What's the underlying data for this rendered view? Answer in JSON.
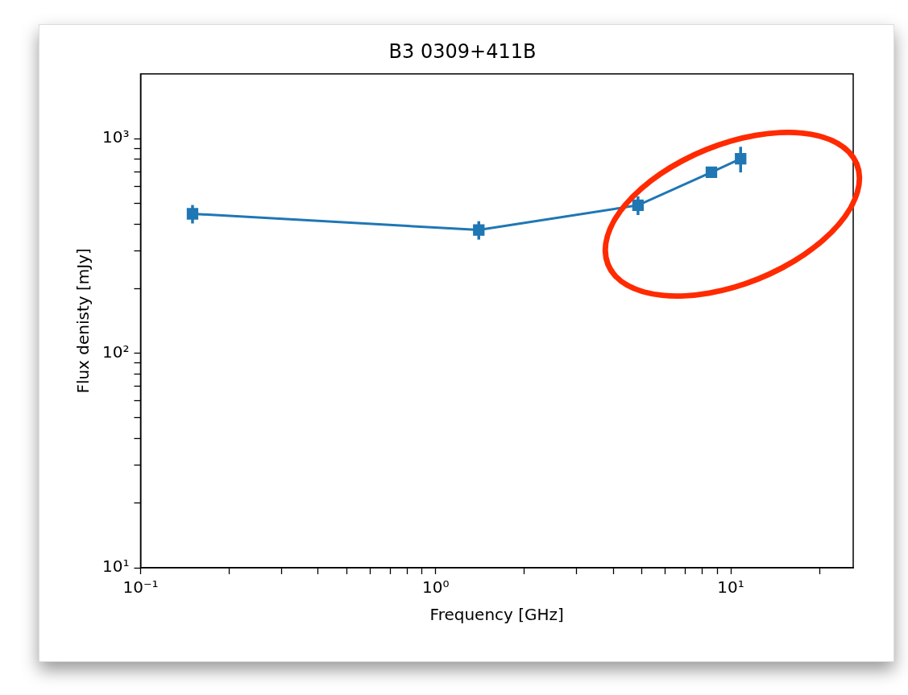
{
  "chart_data": {
    "type": "line",
    "title": "B3 0309+411B",
    "xlabel": "Frequency [GHz]",
    "ylabel": "Flux denisty [mJy]",
    "x": [
      0.15,
      1.4,
      4.85,
      8.6,
      10.8
    ],
    "series": [
      {
        "color": "#1f77b4",
        "values": [
          446,
          375,
          489,
          696,
          805
        ],
        "errors": [
          44,
          37,
          49,
          null,
          110
        ]
      }
    ],
    "log": "xy",
    "marker": "square",
    "line_style": "solid",
    "grid": false,
    "legend": false,
    "xlim": [
      0.1,
      26
    ],
    "xticks": [
      {
        "value": 0.1,
        "label": "10⁻¹"
      },
      {
        "value": 0.2,
        "label": null
      },
      {
        "value": 0.3,
        "label": null
      },
      {
        "value": 0.4,
        "label": null
      },
      {
        "value": 0.5,
        "label": null
      },
      {
        "value": 0.6,
        "label": null
      },
      {
        "value": 0.7,
        "label": null
      },
      {
        "value": 0.8,
        "label": null
      },
      {
        "value": 0.9,
        "label": null
      },
      {
        "value": 1,
        "label": "10⁰"
      },
      {
        "value": 2,
        "label": null
      },
      {
        "value": 3,
        "label": null
      },
      {
        "value": 4,
        "label": null
      },
      {
        "value": 5,
        "label": null
      },
      {
        "value": 6,
        "label": null
      },
      {
        "value": 7,
        "label": null
      },
      {
        "value": 8,
        "label": null
      },
      {
        "value": 9,
        "label": null
      },
      {
        "value": 10,
        "label": "10¹"
      },
      {
        "value": 20,
        "label": null
      }
    ],
    "ylim": [
      10,
      2000
    ],
    "yticks": [
      {
        "value": 10,
        "label": "10¹"
      },
      {
        "value": 20,
        "label": null
      },
      {
        "value": 30,
        "label": null
      },
      {
        "value": 40,
        "label": null
      },
      {
        "value": 50,
        "label": null
      },
      {
        "value": 60,
        "label": null
      },
      {
        "value": 70,
        "label": null
      },
      {
        "value": 80,
        "label": null
      },
      {
        "value": 90,
        "label": null
      },
      {
        "value": 100,
        "label": "10²"
      },
      {
        "value": 200,
        "label": null
      },
      {
        "value": 300,
        "label": null
      },
      {
        "value": 400,
        "label": null
      },
      {
        "value": 500,
        "label": null
      },
      {
        "value": 600,
        "label": null
      },
      {
        "value": 700,
        "label": null
      },
      {
        "value": 800,
        "label": null
      },
      {
        "value": 900,
        "label": null
      },
      {
        "value": 1000,
        "label": "10³"
      }
    ]
  }
}
